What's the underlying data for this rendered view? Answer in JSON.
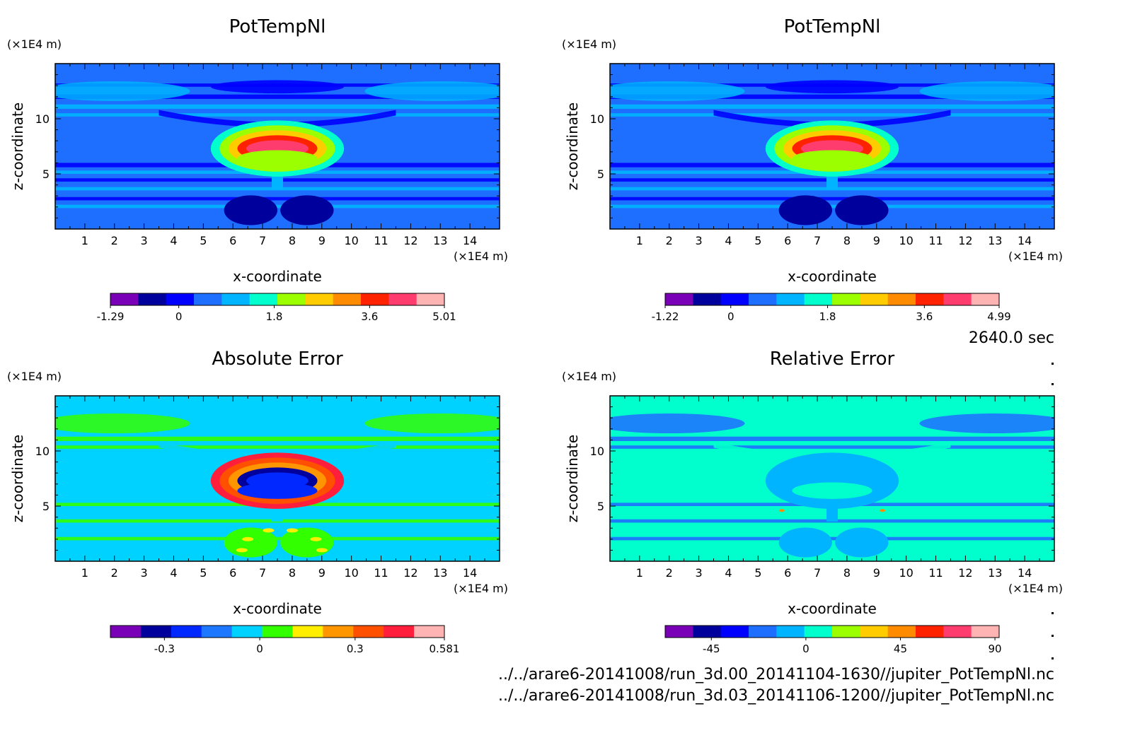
{
  "timestamp": "2640.0 sec",
  "files": [
    "../../arare6-20141008/run_3d.00_20141104-1630//jupiter_PotTempNl.nc",
    "../../arare6-20141008/run_3d.03_20141106-1200//jupiter_PotTempNl.nc"
  ],
  "chart_data": [
    {
      "type": "heatmap",
      "title": "PotTempNl",
      "xlabel": "x-coordinate",
      "ylabel": "z-coordinate",
      "x_unit": "(×1E4 m)",
      "y_unit": "(×1E4 m)",
      "xlim": [
        0,
        15
      ],
      "ylim": [
        0,
        15
      ],
      "xticks": [
        1,
        2,
        3,
        4,
        5,
        6,
        7,
        8,
        9,
        10,
        11,
        12,
        13,
        14
      ],
      "yticks": [
        5,
        10
      ],
      "background_color": "#1e6fff",
      "features": {
        "plume_center_x": 7.5,
        "plume_top_z": 9,
        "plume_max": 5.01
      },
      "colorbar": {
        "colors": [
          "#7a00b8",
          "#00009c",
          "#0000ff",
          "#1e6fff",
          "#00b4ff",
          "#00ffcc",
          "#9cff00",
          "#ffcc00",
          "#ff8c00",
          "#ff2200",
          "#ff3c6e",
          "#ffb4b4"
        ],
        "tick_labels": [
          "-1.29",
          "0",
          "1.8",
          "3.6",
          "5.01"
        ],
        "tick_values": [
          -1.29,
          0,
          1.8,
          3.6,
          5.01
        ],
        "range": [
          -1.29,
          5.01
        ]
      }
    },
    {
      "type": "heatmap",
      "title": "PotTempNl",
      "xlabel": "x-coordinate",
      "ylabel": "z-coordinate",
      "x_unit": "(×1E4 m)",
      "y_unit": "(×1E4 m)",
      "xlim": [
        0,
        15
      ],
      "ylim": [
        0,
        15
      ],
      "xticks": [
        1,
        2,
        3,
        4,
        5,
        6,
        7,
        8,
        9,
        10,
        11,
        12,
        13,
        14
      ],
      "yticks": [
        5,
        10
      ],
      "background_color": "#1e6fff",
      "features": {
        "plume_center_x": 7.5,
        "plume_top_z": 9,
        "plume_max": 4.99
      },
      "colorbar": {
        "colors": [
          "#7a00b8",
          "#00009c",
          "#0000ff",
          "#1e6fff",
          "#00b4ff",
          "#00ffcc",
          "#9cff00",
          "#ffcc00",
          "#ff8c00",
          "#ff2200",
          "#ff3c6e",
          "#ffb4b4"
        ],
        "tick_labels": [
          "-1.22",
          "0",
          "1.8",
          "3.6",
          "4.99"
        ],
        "tick_values": [
          -1.22,
          0,
          1.8,
          3.6,
          4.99
        ],
        "range": [
          -1.22,
          4.99
        ]
      }
    },
    {
      "type": "heatmap",
      "title": "Absolute Error",
      "xlabel": "x-coordinate",
      "ylabel": "z-coordinate",
      "x_unit": "(×1E4 m)",
      "y_unit": "(×1E4 m)",
      "xlim": [
        0,
        15
      ],
      "ylim": [
        0,
        15
      ],
      "xticks": [
        1,
        2,
        3,
        4,
        5,
        6,
        7,
        8,
        9,
        10,
        11,
        12,
        13,
        14
      ],
      "yticks": [
        5,
        10
      ],
      "background_color": "#00d2ff",
      "features": {
        "plume_center_x": 7.5,
        "plume_top_z": 9,
        "plume_max": 0.581
      },
      "colorbar": {
        "colors": [
          "#7a00b8",
          "#00009c",
          "#0028ff",
          "#1e78ff",
          "#00d2ff",
          "#32ff00",
          "#ffee00",
          "#ff9600",
          "#ff5000",
          "#ff1e3c",
          "#ffb4b4"
        ],
        "tick_labels": [
          "-0.3",
          "0",
          "0.3",
          "0.581"
        ],
        "tick_values": [
          -0.3,
          0,
          0.3,
          0.581
        ],
        "range": [
          -0.47,
          0.581
        ]
      }
    },
    {
      "type": "heatmap",
      "title": "Relative Error",
      "xlabel": "x-coordinate",
      "ylabel": "z-coordinate",
      "x_unit": "(×1E4 m)",
      "y_unit": "(×1E4 m)",
      "xlim": [
        0,
        15
      ],
      "ylim": [
        0,
        15
      ],
      "xticks": [
        1,
        2,
        3,
        4,
        5,
        6,
        7,
        8,
        9,
        10,
        11,
        12,
        13,
        14
      ],
      "yticks": [
        5,
        10
      ],
      "background_color": "#00ffcc",
      "features": {
        "plume_center_x": 7.5,
        "plume_top_z": 9,
        "plume_max": 90
      },
      "colorbar": {
        "colors": [
          "#7a00b8",
          "#00009c",
          "#0000ff",
          "#1e6fff",
          "#00b4ff",
          "#00ffcc",
          "#9cff00",
          "#ffcc00",
          "#ff8c00",
          "#ff2200",
          "#ff3c6e",
          "#ffb4b4"
        ],
        "tick_labels": [
          "-45",
          "0",
          "45",
          "90"
        ],
        "tick_values": [
          -45,
          0,
          45,
          90
        ],
        "range": [
          -67,
          92
        ]
      }
    }
  ]
}
